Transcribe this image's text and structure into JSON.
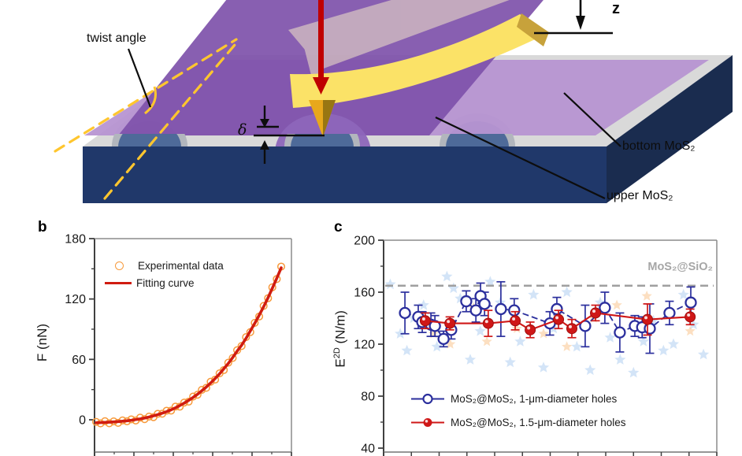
{
  "page": {
    "background": "#ffffff"
  },
  "schematic": {
    "labels": {
      "twist_angle": "twist angle",
      "z": "z",
      "delta": "δ",
      "bottom_layer": "bottom MoS₂",
      "upper_layer": "upper MoS₂"
    },
    "colors": {
      "substrate_front": "#20386a",
      "substrate_side": "#1a2c4f",
      "surface_gray": "#d9d9d9",
      "hole_rim": "#b2b6bd",
      "hole_well": "#4e6a99",
      "bottom_mos2": "#b795d2",
      "upper_mos2": "#7e51aa",
      "membrane_bulge": "#8d66ba",
      "cantilever": "#fbe267",
      "cantilever_edge": "#c7a23b",
      "tip_gold": "#e8a81c",
      "tip_shadow": "#8a6d10",
      "ghost": "#fdf3cb",
      "force_arrow": "#bf0000",
      "dashed_guide": "#ffc62e",
      "marker_black": "#0d0d0d"
    }
  },
  "panel_b": {
    "letter": "b",
    "ylabel": "F (nN)",
    "legend": [
      {
        "label": "Experimental data",
        "marker": "open-circle",
        "color": "#f79a3c"
      },
      {
        "label": "Fitting curve",
        "marker": "line",
        "color": "#d01c10"
      }
    ]
  },
  "panel_c": {
    "letter": "c",
    "ylabel_parts": {
      "base": "E",
      "sup": "2D",
      "unit": " (N/m)"
    },
    "reference_label": "MoS₂@SiO₂",
    "legend": [
      {
        "label": "MoS₂@MoS₂, 1-μm-diameter holes",
        "marker": "open-circle",
        "color": "#2b2f9d"
      },
      {
        "label": "MoS₂@MoS₂, 1.5-μm-diameter holes",
        "marker": "filled-circle",
        "color": "#cf1717"
      }
    ]
  },
  "chart_data": [
    {
      "id": "force_curve",
      "type": "line",
      "title": "",
      "ylabel": "F (nN)",
      "ylim": [
        -33,
        180
      ],
      "y_ticks": [
        0,
        60,
        120,
        180
      ],
      "y_minor_ticks": [
        30,
        90,
        150
      ],
      "grid": false,
      "legend_position": "top-left",
      "series": [
        {
          "name": "Experimental data",
          "type": "scatter",
          "marker": "open-circle",
          "color": "#f79a3c",
          "x_frac": [
            0.0,
            0.024,
            0.048,
            0.071,
            0.095,
            0.119,
            0.143,
            0.167,
            0.19,
            0.214,
            0.238,
            0.262,
            0.286,
            0.31,
            0.333,
            0.357,
            0.381,
            0.405,
            0.429,
            0.452,
            0.476,
            0.5,
            0.524,
            0.548,
            0.571,
            0.595,
            0.619,
            0.643,
            0.667,
            0.69,
            0.714,
            0.738,
            0.762,
            0.786,
            0.81,
            0.833,
            0.857,
            0.881,
            0.905,
            0.929,
            0.952,
            0.976,
            1.0
          ],
          "values": [
            -2.1,
            -3.6,
            -1.4,
            -3.5,
            -1.6,
            -3.1,
            -0.6,
            -1.5,
            0.4,
            -0.7,
            2.1,
            0.6,
            3.2,
            2.6,
            5.9,
            6.0,
            9.0,
            9.1,
            13.1,
            13.0,
            17.1,
            18.0,
            23.0,
            24.9,
            29.7,
            31.7,
            37.8,
            39.9,
            46.1,
            49.4,
            56.7,
            61.4,
            69.1,
            73.3,
            82.1,
            87.1,
            96.3,
            102.6,
            113.1,
            120.8,
            131.6,
            139.8,
            152.2
          ]
        },
        {
          "name": "Fitting curve",
          "type": "line",
          "color": "#d01c10",
          "width": 3.6,
          "x_frac": [
            0.0,
            0.024,
            0.048,
            0.071,
            0.095,
            0.119,
            0.143,
            0.167,
            0.19,
            0.214,
            0.238,
            0.262,
            0.286,
            0.31,
            0.333,
            0.357,
            0.381,
            0.405,
            0.429,
            0.452,
            0.476,
            0.5,
            0.524,
            0.548,
            0.571,
            0.595,
            0.619,
            0.643,
            0.667,
            0.69,
            0.714,
            0.738,
            0.762,
            0.786,
            0.81,
            0.833,
            0.857,
            0.881,
            0.905,
            0.929,
            0.952,
            0.976,
            1.0
          ],
          "values": [
            -3.0,
            -2.8,
            -2.6,
            -2.4,
            -2.1,
            -1.8,
            -1.4,
            -1.0,
            -0.5,
            0.2,
            0.9,
            1.7,
            2.7,
            3.9,
            5.1,
            6.5,
            8.1,
            9.9,
            11.9,
            14.1,
            16.6,
            19.3,
            22.2,
            25.4,
            28.8,
            32.5,
            36.6,
            41.0,
            45.6,
            50.7,
            55.9,
            61.9,
            68.2,
            74.1,
            80.9,
            88.2,
            95.8,
            103.9,
            112.3,
            121.3,
            130.7,
            140.6,
            151.0
          ]
        }
      ]
    },
    {
      "id": "modulus_plot",
      "type": "scatter",
      "title": "",
      "ylabel": "E2D (N/m)",
      "ylim": [
        37,
        200
      ],
      "y_ticks": [
        40,
        80,
        120,
        160,
        200
      ],
      "y_minor_step": 20,
      "grid": false,
      "legend_position": "bottom-left",
      "reference_line": {
        "value": 165,
        "label": "MoS₂@SiO₂",
        "color": "#9f9f9f",
        "style": "dashed"
      },
      "series": [
        {
          "name": "MoS₂@MoS₂, 1-μm-diameter holes",
          "marker": "open-circle",
          "color": "#2b2f9d",
          "line_dash": "8 4",
          "points": [
            [
              0.064,
              144,
              16
            ],
            [
              0.104,
              141,
              9
            ],
            [
              0.116,
              137,
              8
            ],
            [
              0.142,
              135,
              9
            ],
            [
              0.154,
              134,
              8
            ],
            [
              0.18,
              124,
              6
            ],
            [
              0.203,
              131,
              7
            ],
            [
              0.248,
              153,
              8
            ],
            [
              0.277,
              146,
              9
            ],
            [
              0.291,
              157,
              10
            ],
            [
              0.303,
              151,
              9
            ],
            [
              0.352,
              147,
              21
            ],
            [
              0.392,
              146,
              9
            ],
            [
              0.499,
              136,
              9
            ],
            [
              0.52,
              147,
              9
            ],
            [
              0.605,
              134,
              16
            ],
            [
              0.664,
              148,
              12
            ],
            [
              0.709,
              129,
              15
            ],
            [
              0.754,
              134,
              8
            ],
            [
              0.776,
              133,
              8
            ],
            [
              0.799,
              132,
              19
            ],
            [
              0.858,
              144,
              9
            ],
            [
              0.922,
              152,
              12
            ]
          ]
        },
        {
          "name": "MoS₂@MoS₂, 1.5-μm-diameter holes",
          "marker": "filled-circle",
          "color": "#cf1717",
          "line_dash": "",
          "points": [
            [
              0.125,
              138,
              6
            ],
            [
              0.199,
              136,
              5
            ],
            [
              0.314,
              136,
              10
            ],
            [
              0.395,
              138,
              7
            ],
            [
              0.44,
              131,
              6
            ],
            [
              0.525,
              139,
              7
            ],
            [
              0.565,
              132,
              7
            ],
            [
              0.636,
              144,
              6
            ],
            [
              0.792,
              139,
              12
            ],
            [
              0.92,
              141,
              6
            ]
          ]
        }
      ],
      "background_scatter": {
        "blue_star_color": "#aecdf0",
        "orange_star_color": "#f9c48e",
        "blue_stars": [
          [
            0.02,
            166
          ],
          [
            0.05,
            128
          ],
          [
            0.07,
            115
          ],
          [
            0.09,
            140
          ],
          [
            0.12,
            150
          ],
          [
            0.16,
            118
          ],
          [
            0.19,
            172
          ],
          [
            0.21,
            163
          ],
          [
            0.23,
            155
          ],
          [
            0.26,
            108
          ],
          [
            0.29,
            130
          ],
          [
            0.32,
            168
          ],
          [
            0.35,
            152
          ],
          [
            0.38,
            106
          ],
          [
            0.41,
            122
          ],
          [
            0.45,
            158
          ],
          [
            0.48,
            102
          ],
          [
            0.51,
            132
          ],
          [
            0.55,
            160
          ],
          [
            0.58,
            118
          ],
          [
            0.62,
            100
          ],
          [
            0.65,
            152
          ],
          [
            0.68,
            125
          ],
          [
            0.71,
            108
          ],
          [
            0.75,
            98
          ],
          [
            0.78,
            122
          ],
          [
            0.81,
            138
          ],
          [
            0.84,
            115
          ],
          [
            0.87,
            120
          ],
          [
            0.9,
            158
          ],
          [
            0.93,
            135
          ],
          [
            0.96,
            112
          ]
        ],
        "orange_stars": [
          [
            0.11,
            138
          ],
          [
            0.15,
            128
          ],
          [
            0.2,
            120
          ],
          [
            0.27,
            148
          ],
          [
            0.31,
            122
          ],
          [
            0.4,
            132
          ],
          [
            0.48,
            128
          ],
          [
            0.55,
            118
          ],
          [
            0.63,
            140
          ],
          [
            0.7,
            150
          ],
          [
            0.79,
            157
          ],
          [
            0.92,
            130
          ]
        ]
      }
    }
  ]
}
